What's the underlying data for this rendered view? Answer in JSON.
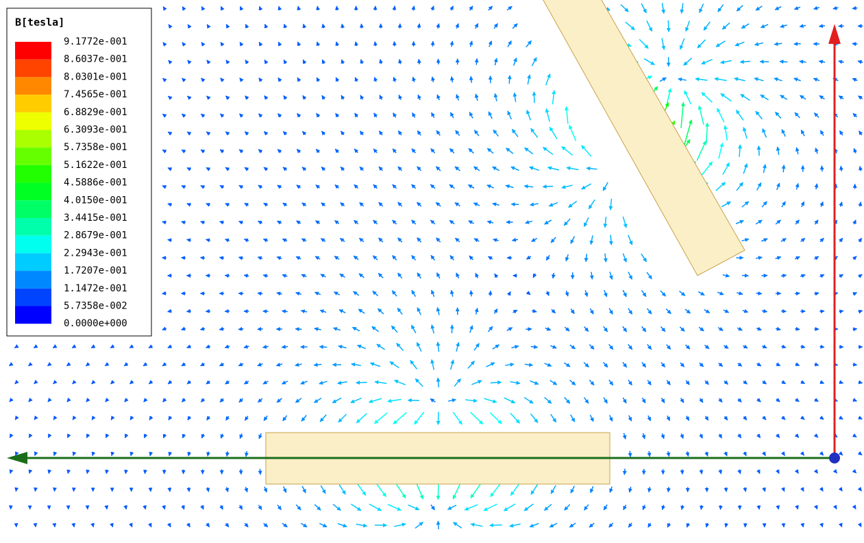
{
  "legend": {
    "title": "B[tesla]",
    "labels": [
      "9.1772e-001",
      "8.6037e-001",
      "8.0301e-001",
      "7.4565e-001",
      "6.8829e-001",
      "6.3093e-001",
      "5.7358e-001",
      "5.1622e-001",
      "4.5886e-001",
      "4.0150e-001",
      "3.4415e-001",
      "2.8679e-001",
      "2.2943e-001",
      "1.7207e-001",
      "1.1472e-001",
      "5.7358e-002",
      "0.0000e+000"
    ]
  }
}
